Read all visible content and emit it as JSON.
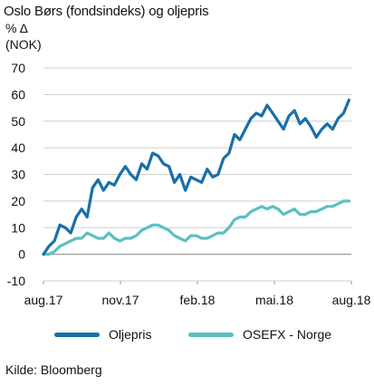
{
  "header": {
    "title": "Oslo Børs (fondsindeks) og oljepris",
    "unit_line1": "% Δ",
    "unit_line2": "(NOK)"
  },
  "source": "Kilde: Bloomberg",
  "colors": {
    "oil": "#1a6fa8",
    "osefx": "#5bc0c0",
    "grid": "#cfcfcf",
    "axis": "#9a9a9a"
  },
  "chart_data": {
    "type": "line",
    "title": "Oslo Børs (fondsindeks) og oljepris",
    "ylabel": "% Δ (NOK)",
    "ylim": [
      -10,
      70
    ],
    "yticks": [
      -10,
      0,
      10,
      20,
      30,
      40,
      50,
      60,
      70
    ],
    "xticks": [
      "aug.17",
      "nov.17",
      "feb.18",
      "mai.18",
      "aug.18"
    ],
    "x_domain": [
      "2017-08-01",
      "2018-08-31"
    ],
    "grid": true,
    "legend_position": "bottom",
    "series": [
      {
        "name": "Oljepris",
        "points": [
          [
            "2017-08-01",
            0
          ],
          [
            "2017-08-08",
            3
          ],
          [
            "2017-08-15",
            5
          ],
          [
            "2017-08-22",
            11
          ],
          [
            "2017-08-29",
            10
          ],
          [
            "2017-09-05",
            8
          ],
          [
            "2017-09-12",
            14
          ],
          [
            "2017-09-19",
            17
          ],
          [
            "2017-09-26",
            14
          ],
          [
            "2017-10-03",
            25
          ],
          [
            "2017-10-10",
            28
          ],
          [
            "2017-10-17",
            24
          ],
          [
            "2017-10-24",
            27
          ],
          [
            "2017-10-31",
            26
          ],
          [
            "2017-11-07",
            30
          ],
          [
            "2017-11-14",
            33
          ],
          [
            "2017-11-21",
            30
          ],
          [
            "2017-11-28",
            28
          ],
          [
            "2017-12-05",
            34
          ],
          [
            "2017-12-12",
            32
          ],
          [
            "2017-12-19",
            38
          ],
          [
            "2017-12-26",
            37
          ],
          [
            "2018-01-02",
            34
          ],
          [
            "2018-01-09",
            33
          ],
          [
            "2018-01-16",
            27
          ],
          [
            "2018-01-23",
            30
          ],
          [
            "2018-01-30",
            24
          ],
          [
            "2018-02-06",
            29
          ],
          [
            "2018-02-13",
            28
          ],
          [
            "2018-02-20",
            27
          ],
          [
            "2018-02-27",
            32
          ],
          [
            "2018-03-06",
            29
          ],
          [
            "2018-03-13",
            30
          ],
          [
            "2018-03-20",
            36
          ],
          [
            "2018-03-27",
            38
          ],
          [
            "2018-04-03",
            45
          ],
          [
            "2018-04-10",
            43
          ],
          [
            "2018-04-17",
            47
          ],
          [
            "2018-04-24",
            51
          ],
          [
            "2018-05-01",
            53
          ],
          [
            "2018-05-08",
            52
          ],
          [
            "2018-05-15",
            56
          ],
          [
            "2018-05-22",
            53
          ],
          [
            "2018-05-29",
            50
          ],
          [
            "2018-06-05",
            47
          ],
          [
            "2018-06-12",
            52
          ],
          [
            "2018-06-19",
            54
          ],
          [
            "2018-06-26",
            49
          ],
          [
            "2018-07-03",
            51
          ],
          [
            "2018-07-10",
            48
          ],
          [
            "2018-07-17",
            44
          ],
          [
            "2018-07-24",
            47
          ],
          [
            "2018-07-31",
            49
          ],
          [
            "2018-08-07",
            47
          ],
          [
            "2018-08-14",
            51
          ],
          [
            "2018-08-21",
            53
          ],
          [
            "2018-08-28",
            58
          ]
        ]
      },
      {
        "name": "OSEFX - Norge",
        "points": [
          [
            "2017-08-01",
            0
          ],
          [
            "2017-08-08",
            0
          ],
          [
            "2017-08-15",
            1
          ],
          [
            "2017-08-22",
            3
          ],
          [
            "2017-08-29",
            4
          ],
          [
            "2017-09-05",
            5
          ],
          [
            "2017-09-12",
            6
          ],
          [
            "2017-09-19",
            6
          ],
          [
            "2017-09-26",
            8
          ],
          [
            "2017-10-03",
            7
          ],
          [
            "2017-10-10",
            6
          ],
          [
            "2017-10-17",
            6
          ],
          [
            "2017-10-24",
            8
          ],
          [
            "2017-10-31",
            6
          ],
          [
            "2017-11-07",
            5
          ],
          [
            "2017-11-14",
            6
          ],
          [
            "2017-11-21",
            6
          ],
          [
            "2017-11-28",
            7
          ],
          [
            "2017-12-05",
            9
          ],
          [
            "2017-12-12",
            10
          ],
          [
            "2017-12-19",
            11
          ],
          [
            "2017-12-26",
            11
          ],
          [
            "2018-01-02",
            10
          ],
          [
            "2018-01-09",
            9
          ],
          [
            "2018-01-16",
            7
          ],
          [
            "2018-01-23",
            6
          ],
          [
            "2018-01-30",
            5
          ],
          [
            "2018-02-06",
            7
          ],
          [
            "2018-02-13",
            7
          ],
          [
            "2018-02-20",
            6
          ],
          [
            "2018-02-27",
            6
          ],
          [
            "2018-03-06",
            7
          ],
          [
            "2018-03-13",
            8
          ],
          [
            "2018-03-20",
            8
          ],
          [
            "2018-03-27",
            10
          ],
          [
            "2018-04-03",
            13
          ],
          [
            "2018-04-10",
            14
          ],
          [
            "2018-04-17",
            14
          ],
          [
            "2018-04-24",
            16
          ],
          [
            "2018-05-01",
            17
          ],
          [
            "2018-05-08",
            18
          ],
          [
            "2018-05-15",
            17
          ],
          [
            "2018-05-22",
            18
          ],
          [
            "2018-05-29",
            17
          ],
          [
            "2018-06-05",
            15
          ],
          [
            "2018-06-12",
            16
          ],
          [
            "2018-06-19",
            17
          ],
          [
            "2018-06-26",
            15
          ],
          [
            "2018-07-03",
            15
          ],
          [
            "2018-07-10",
            16
          ],
          [
            "2018-07-17",
            16
          ],
          [
            "2018-07-24",
            17
          ],
          [
            "2018-07-31",
            18
          ],
          [
            "2018-08-07",
            18
          ],
          [
            "2018-08-14",
            19
          ],
          [
            "2018-08-21",
            20
          ],
          [
            "2018-08-28",
            20
          ]
        ]
      }
    ]
  }
}
